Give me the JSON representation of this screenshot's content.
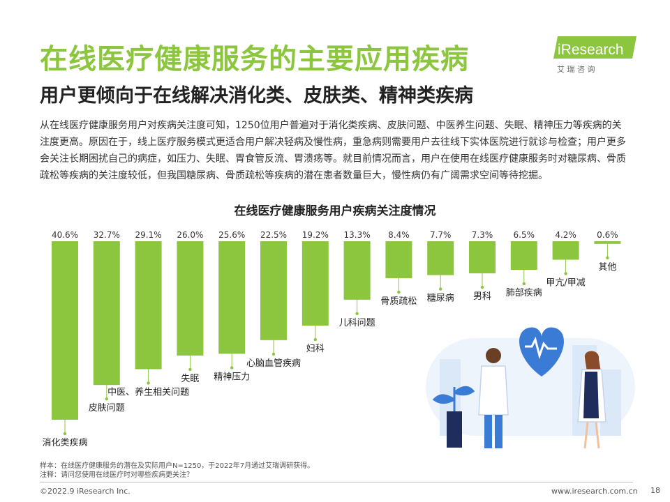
{
  "header": {
    "title": "在线医疗健康服务的主要应用疾病",
    "subtitle": "用户更倾向于在线解决消化类、皮肤类、精神类疾病"
  },
  "logo": {
    "brand": "iResearch",
    "tagline": "艾 瑞 咨 询",
    "colors": {
      "green": "#8cc63f",
      "white": "#ffffff"
    }
  },
  "body_text": "从在线医疗健康服务用户对疾病关注度可知，1250位用户普遍对于消化类疾病、皮肤问题、中医养生问题、失眠、精神压力等疾病的关注度更高。原因在于，线上医疗服务模式更适合用户解决轻病及慢性病，重急病则需要用户去往线下实体医院进行就诊与检查；用户更多会关注长期困扰自己的病症，如压力、失眠、胃食管反流、胃溃疡等。就目前情况而言，用户在使用在线医疗健康服务时对糖尿病、骨质疏松等疾病的关注度较低，但我国糖尿病、骨质疏松等疾病的潜在患者数量巨大，慢性病仍有广阔需求空间等待挖掘。",
  "chart_data": {
    "type": "bar",
    "title": "在线医疗健康服务用户疾病关注度情况",
    "categories": [
      "消化类疾病",
      "皮肤问题",
      "中医、养生相关问题",
      "失眠",
      "精神压力",
      "心脑血管疾病",
      "妇科",
      "儿科问题",
      "骨质疏松",
      "糖尿病",
      "男科",
      "肺部疾病",
      "甲亢/甲减",
      "其他"
    ],
    "values": [
      40.6,
      32.7,
      29.1,
      26.0,
      25.6,
      22.5,
      19.2,
      13.3,
      8.4,
      7.7,
      7.3,
      6.5,
      4.2,
      0.6
    ],
    "value_labels": [
      "40.6%",
      "32.7%",
      "29.1%",
      "26.0%",
      "25.6%",
      "22.5%",
      "19.2%",
      "13.3%",
      "8.4%",
      "7.7%",
      "7.3%",
      "6.5%",
      "4.2%",
      "0.6%"
    ],
    "ylim": [
      0,
      40.6
    ],
    "bar_color": "#8cc63f",
    "leader_color": "#8cc63f",
    "grid": false,
    "legend": "none"
  },
  "notes": {
    "sample": "样本：在线医疗健康服务的潜在及实际用户N=1250，于2022年7月通过艾瑞调研获得。",
    "annotation": "注释：请问您使用在线医疗时对哪些疾病更关注？"
  },
  "footer": {
    "copyright": "©2022.9 iResearch Inc.",
    "website": "www.iresearch.com.cn",
    "page_number": "18"
  },
  "illustration": {
    "colors": {
      "blue": "#3a7bd5",
      "light_blue": "#dbe8f7",
      "navy": "#1f2d5c"
    }
  }
}
